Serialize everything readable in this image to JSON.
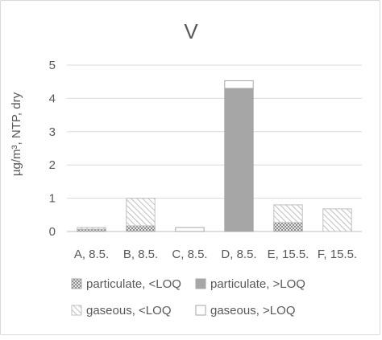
{
  "chart_data": {
    "type": "bar",
    "stacked": true,
    "title": "V",
    "xlabel": "",
    "ylabel": "µg/m³, NTP, dry",
    "ylim": [
      0,
      5
    ],
    "yticks": [
      "0",
      "1",
      "2",
      "3",
      "4",
      "5"
    ],
    "grid": "horizontal",
    "legend_position": "bottom",
    "categories": [
      "A, 8.5.",
      "B, 8.5.",
      "C, 8.5.",
      "D, 8.5.",
      "E, 15.5.",
      "F, 15.5."
    ],
    "series": [
      {
        "name": "particulate, <LOQ",
        "pattern": "dots",
        "color": "#a6a6a6",
        "values": [
          0.07,
          0.17,
          0,
          0,
          0.27,
          0
        ]
      },
      {
        "name": "particulate, >LOQ",
        "pattern": "solid",
        "color": "#a6a6a6",
        "values": [
          0,
          0,
          0,
          4.3,
          0,
          0
        ]
      },
      {
        "name": "gaseous, <LOQ",
        "pattern": "diagonal",
        "color": "#bfbfbf",
        "values": [
          0.05,
          0.83,
          0,
          0,
          0.53,
          0.68
        ]
      },
      {
        "name": "gaseous, >LOQ",
        "pattern": "empty",
        "color": "#ffffff",
        "values": [
          0,
          0,
          0.12,
          0.23,
          0,
          0
        ]
      }
    ]
  }
}
